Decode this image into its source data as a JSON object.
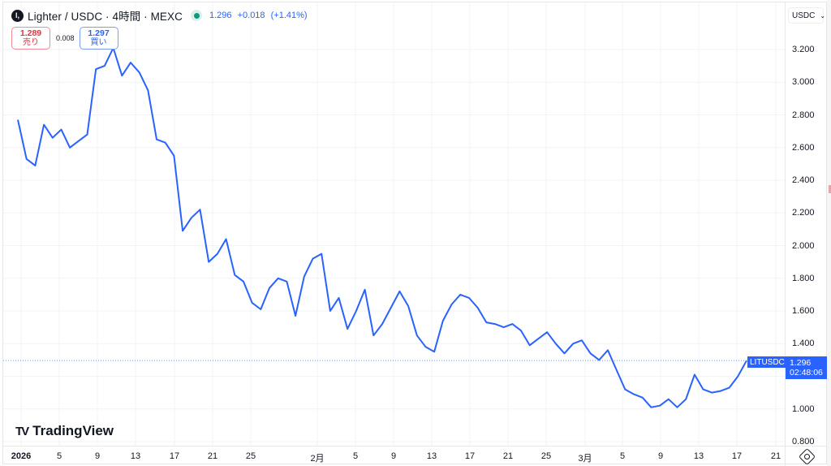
{
  "header": {
    "logo_glyph": "l,",
    "symbol": "Lighter / USDC · 4時間 · MEXC",
    "status_dot_color": "#089981",
    "last": "1.296",
    "change": "+0.018",
    "change_pct": "(+1.41%)"
  },
  "trade": {
    "sell_price": "1.289",
    "sell_label": "売り",
    "spread": "0.008",
    "buy_price": "1.297",
    "buy_label": "買い"
  },
  "currency_select": {
    "value": "USDC",
    "chevron": "⌄"
  },
  "brand": {
    "mark": "TV",
    "name": "TradingView"
  },
  "last_price_tag": {
    "symbol": "LITUSDC",
    "price": "1.296",
    "countdown": "02:48:06"
  },
  "colors": {
    "line": "#2962ff",
    "sell": "#e0323f",
    "buy": "#2962ff",
    "accent": "#2962ff"
  },
  "chart_data": {
    "type": "line",
    "title": "Lighter / USDC · 4時間 · MEXC",
    "xlabel": "",
    "ylabel": "USDC",
    "ylim": [
      0.8,
      3.3
    ],
    "grid": true,
    "legend": "none",
    "y_ticks": [
      "3.200",
      "3.000",
      "2.800",
      "2.600",
      "2.400",
      "2.200",
      "2.000",
      "1.800",
      "1.600",
      "1.400",
      "1.200",
      "1.000",
      "0.800"
    ],
    "x_ticks": [
      "2026",
      "5",
      "9",
      "13",
      "17",
      "21",
      "25",
      "2月",
      "5",
      "9",
      "13",
      "17",
      "21",
      "25",
      "3月",
      "5",
      "9",
      "13",
      "17",
      "21"
    ],
    "series": [
      {
        "name": "LITUSDC",
        "x": [
          "01-01",
          "01-01",
          "01-02",
          "01-03",
          "01-03",
          "01-04",
          "01-05",
          "01-05",
          "01-06",
          "01-07",
          "01-07",
          "01-08",
          "01-08",
          "01-09",
          "01-10",
          "01-10",
          "01-11",
          "01-12",
          "01-12",
          "01-13",
          "01-14",
          "01-14",
          "01-15",
          "01-16",
          "01-17",
          "01-18",
          "01-19",
          "01-20",
          "01-21",
          "01-22",
          "01-23",
          "01-24",
          "01-25",
          "01-26",
          "01-27",
          "01-28",
          "01-29",
          "01-30",
          "01-31",
          "02-01",
          "02-02",
          "02-03",
          "02-04",
          "02-05",
          "02-06",
          "02-07",
          "02-08",
          "02-09",
          "02-10",
          "02-11",
          "02-12",
          "02-13",
          "02-14",
          "02-15",
          "02-16",
          "02-17",
          "02-18",
          "02-19",
          "02-20",
          "02-21",
          "02-22",
          "02-23",
          "02-24",
          "02-25",
          "02-26",
          "02-27",
          "02-28",
          "03-01",
          "03-02",
          "03-03",
          "03-04",
          "03-05",
          "03-06",
          "03-07",
          "03-08",
          "03-09",
          "03-10",
          "03-11",
          "03-12",
          "03-13",
          "03-14",
          "03-15",
          "03-16",
          "03-17",
          "03-18"
        ],
        "values": [
          2.77,
          2.53,
          2.49,
          2.74,
          2.66,
          2.71,
          2.6,
          2.64,
          2.68,
          3.08,
          3.1,
          3.21,
          3.04,
          3.12,
          3.06,
          2.95,
          2.65,
          2.63,
          2.55,
          2.09,
          2.17,
          2.22,
          1.9,
          1.95,
          2.04,
          1.82,
          1.78,
          1.65,
          1.61,
          1.74,
          1.8,
          1.78,
          1.57,
          1.81,
          1.92,
          1.95,
          1.6,
          1.68,
          1.49,
          1.6,
          1.73,
          1.45,
          1.52,
          1.62,
          1.72,
          1.63,
          1.45,
          1.38,
          1.35,
          1.54,
          1.64,
          1.7,
          1.68,
          1.62,
          1.53,
          1.52,
          1.5,
          1.52,
          1.48,
          1.39,
          1.43,
          1.47,
          1.4,
          1.34,
          1.4,
          1.42,
          1.34,
          1.3,
          1.36,
          1.24,
          1.12,
          1.09,
          1.07,
          1.01,
          1.02,
          1.06,
          1.01,
          1.06,
          1.21,
          1.12,
          1.1,
          1.11,
          1.13,
          1.2,
          1.296
        ]
      }
    ]
  }
}
